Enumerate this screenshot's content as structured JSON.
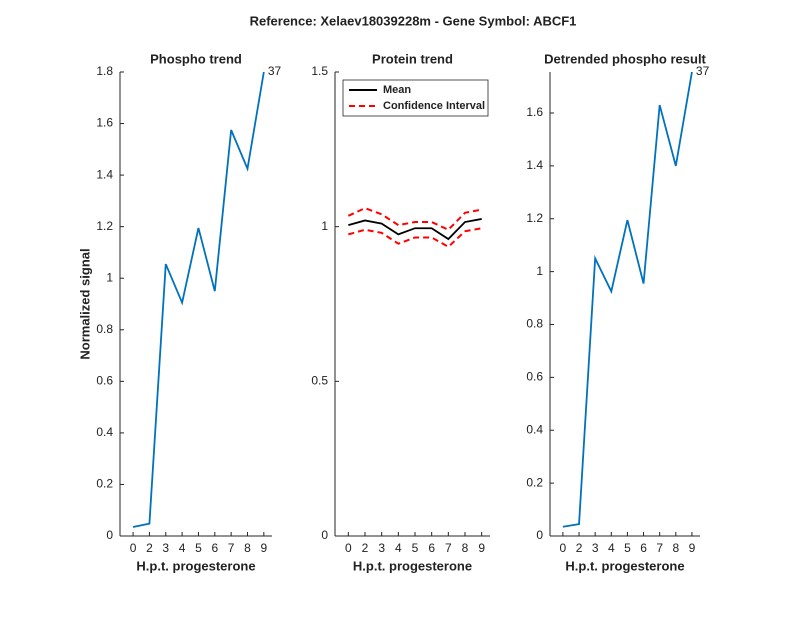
{
  "title": "Reference:  Xelaev18039228m - Gene Symbol:  ABCF1",
  "chart_data": [
    {
      "type": "line",
      "title": "Phospho trend",
      "xlabel": "H.p.t. progesterone",
      "ylabel": "Normalized signal",
      "categories": [
        "0",
        "2",
        "3",
        "4",
        "5",
        "6",
        "7",
        "8",
        "9"
      ],
      "series": [
        {
          "color": "#0072bd",
          "values": [
            0.035,
            0.048,
            1.055,
            0.905,
            1.195,
            0.95,
            1.575,
            1.425,
            1.8
          ]
        }
      ],
      "annotation": "37",
      "ylim": [
        0,
        1.8
      ],
      "yticks": [
        0,
        0.2,
        0.4,
        0.6,
        0.8,
        1,
        1.2,
        1.4,
        1.6,
        1.8
      ]
    },
    {
      "type": "line",
      "title": "Protein trend",
      "xlabel": "H.p.t. progesterone",
      "categories": [
        "0",
        "2",
        "3",
        "4",
        "5",
        "6",
        "7",
        "8",
        "9"
      ],
      "series": [
        {
          "name": "Mean",
          "color": "#000000",
          "values": [
            1.005,
            1.02,
            1.01,
            0.975,
            0.995,
            0.995,
            0.96,
            1.015,
            1.025
          ]
        },
        {
          "name": "Confidence Interval",
          "color": "#ff0000",
          "dashed": true,
          "upper": [
            1.035,
            1.06,
            1.04,
            1.005,
            1.015,
            1.015,
            0.99,
            1.045,
            1.055
          ],
          "lower": [
            0.975,
            0.99,
            0.98,
            0.945,
            0.965,
            0.965,
            0.935,
            0.985,
            0.995
          ]
        }
      ],
      "legend": "upper left",
      "ylim": [
        0,
        1.5
      ],
      "yticks": [
        0,
        0.5,
        1,
        1.5
      ]
    },
    {
      "type": "line",
      "title": "Detrended phospho result",
      "xlabel": "H.p.t. progesterone",
      "categories": [
        "0",
        "2",
        "3",
        "4",
        "5",
        "6",
        "7",
        "8",
        "9"
      ],
      "series": [
        {
          "color": "#0072bd",
          "values": [
            0.035,
            0.045,
            1.05,
            0.925,
            1.195,
            0.955,
            1.63,
            1.4,
            1.755
          ]
        }
      ],
      "annotation": "37",
      "ylim": [
        0,
        1.755
      ],
      "yticks": [
        0,
        0.2,
        0.4,
        0.6,
        0.8,
        1,
        1.2,
        1.4,
        1.6
      ]
    }
  ]
}
